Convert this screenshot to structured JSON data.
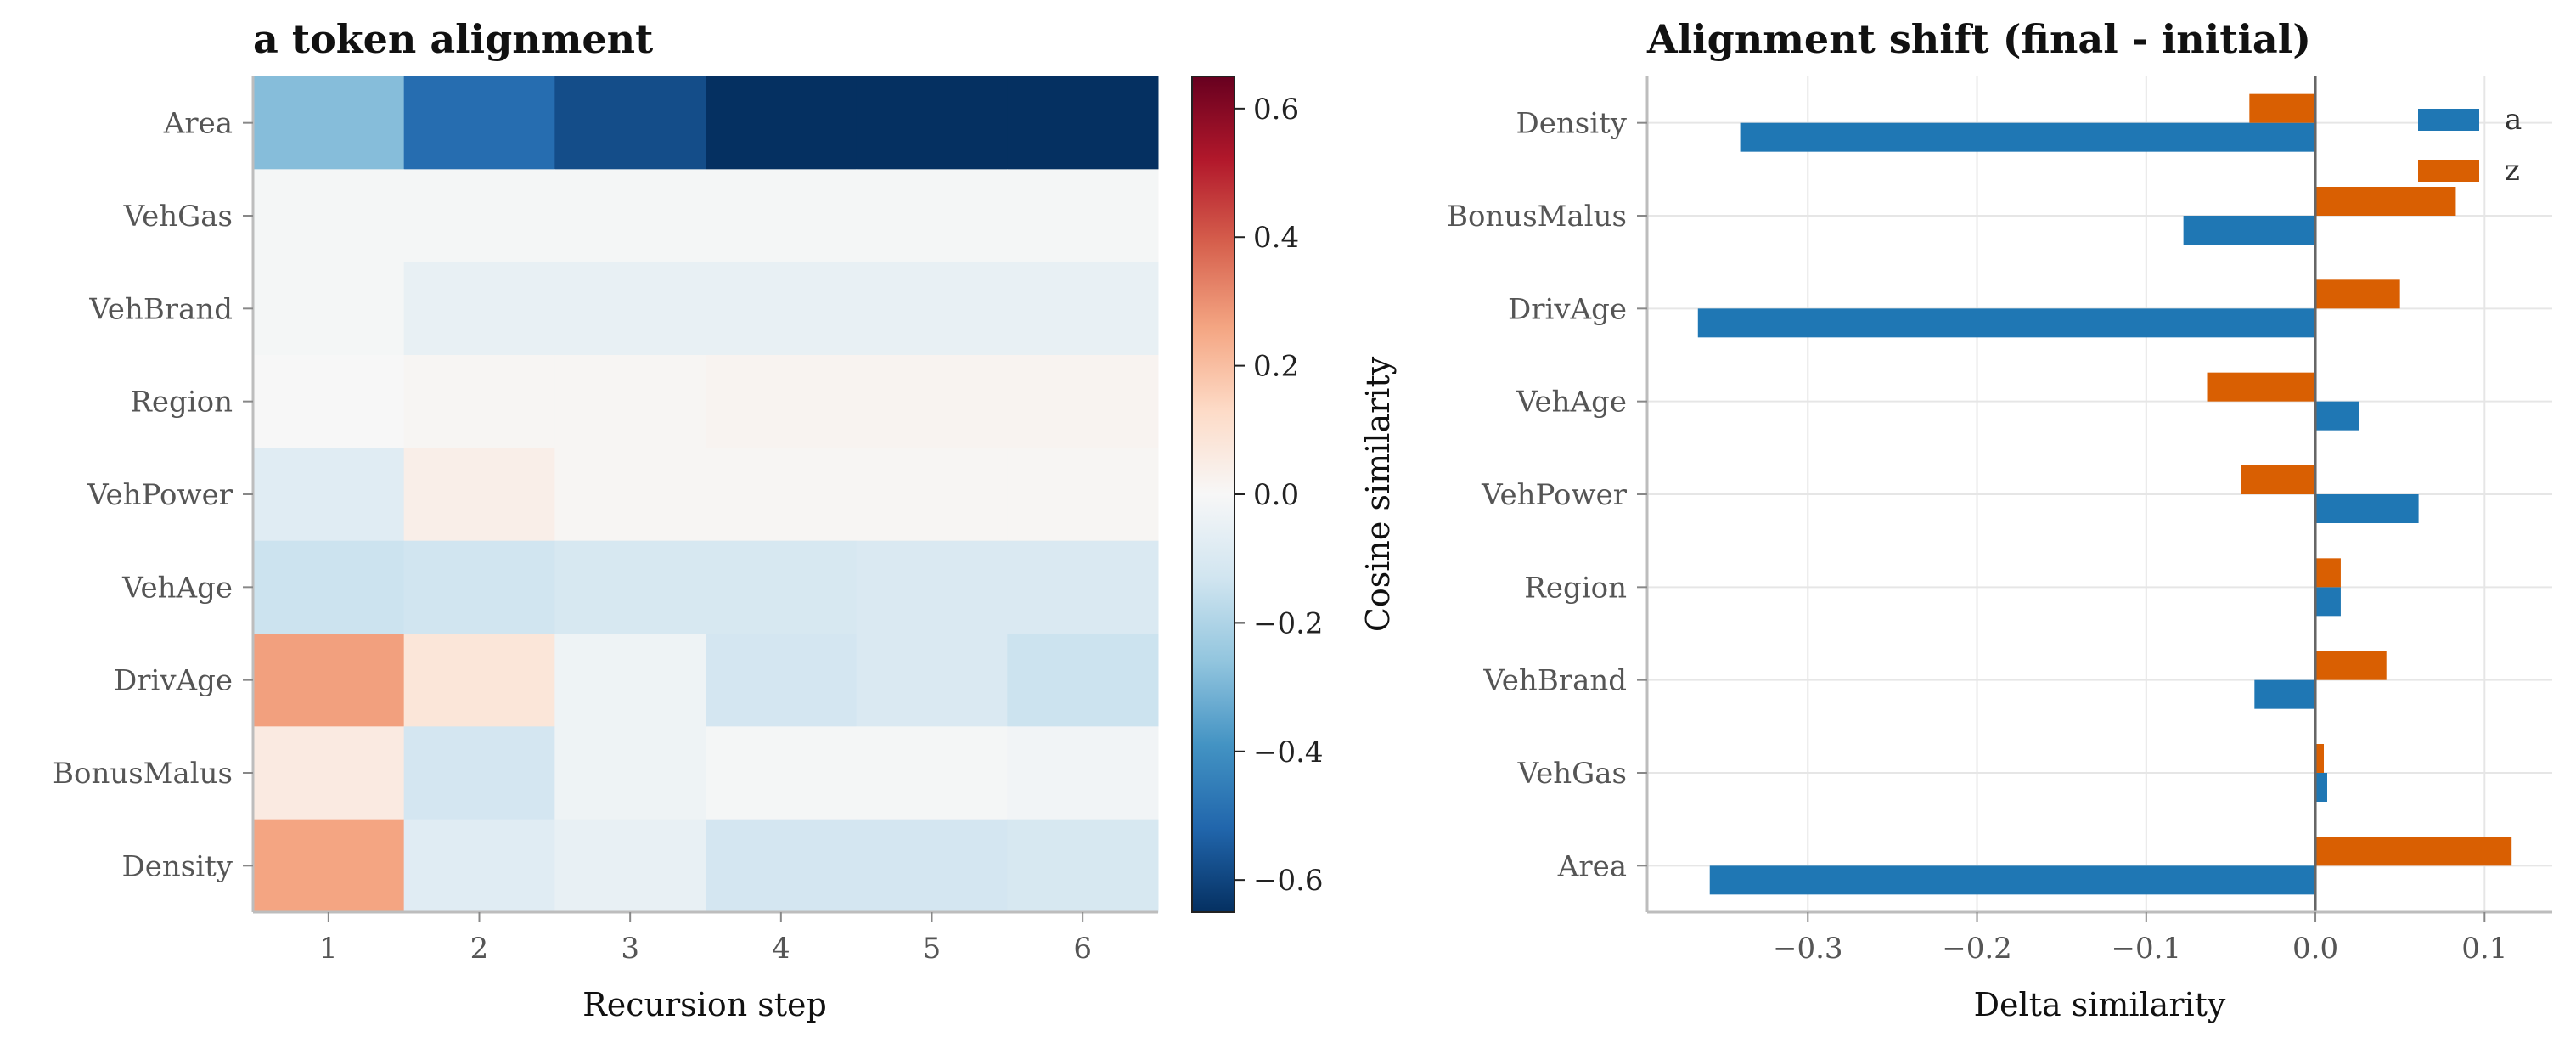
{
  "colors": {
    "a": "#1f77b4",
    "z": "#d95f02",
    "grid": "#e6e6e6",
    "zero_line": "#666666"
  },
  "chart_data": [
    {
      "type": "heatmap",
      "title": "a token alignment",
      "xlabel": "Recursion step",
      "ylabel": "",
      "x_categories": [
        "1",
        "2",
        "3",
        "4",
        "5",
        "6"
      ],
      "y_categories": [
        "Area",
        "VehGas",
        "VehBrand",
        "Region",
        "VehPower",
        "VehAge",
        "DrivAge",
        "BonusMalus",
        "Density"
      ],
      "values": [
        [
          -0.28,
          -0.5,
          -0.58,
          -0.65,
          -0.65,
          -0.65
        ],
        [
          -0.01,
          -0.01,
          -0.01,
          -0.01,
          -0.01,
          -0.01
        ],
        [
          -0.01,
          -0.05,
          -0.05,
          -0.05,
          -0.05,
          -0.05
        ],
        [
          0.0,
          0.01,
          0.01,
          0.02,
          0.02,
          0.02
        ],
        [
          -0.08,
          0.04,
          0.01,
          0.01,
          0.01,
          0.01
        ],
        [
          -0.14,
          -0.13,
          -0.11,
          -0.11,
          -0.1,
          -0.1
        ],
        [
          0.27,
          0.08,
          -0.03,
          -0.12,
          -0.1,
          -0.14
        ],
        [
          0.06,
          -0.12,
          -0.03,
          -0.01,
          -0.01,
          -0.02
        ],
        [
          0.26,
          -0.08,
          -0.05,
          -0.12,
          -0.12,
          -0.11
        ]
      ],
      "vmin": -0.65,
      "vmax": 0.65,
      "colorbar_label": "Cosine similarity",
      "colorbar_ticks": [
        -0.6,
        -0.4,
        -0.2,
        0.0,
        0.2,
        0.4,
        0.6
      ],
      "colorbar_tick_labels": [
        "−0.6",
        "−0.4",
        "−0.2",
        "0.0",
        "0.2",
        "0.4",
        "0.6"
      ],
      "colormap": "diverging blue-white-red"
    },
    {
      "type": "bar",
      "orientation": "horizontal",
      "title": "Alignment shift (final - initial)",
      "xlabel": "Delta similarity",
      "ylabel": "",
      "categories": [
        "Density",
        "BonusMalus",
        "DrivAge",
        "VehAge",
        "VehPower",
        "Region",
        "VehBrand",
        "VehGas",
        "Area"
      ],
      "series": [
        {
          "name": "a",
          "values": [
            -0.34,
            -0.078,
            -0.365,
            0.026,
            0.061,
            0.015,
            -0.036,
            0.007,
            -0.358
          ]
        },
        {
          "name": "z",
          "values": [
            -0.039,
            0.083,
            0.05,
            -0.064,
            -0.044,
            0.015,
            0.042,
            0.005,
            0.116
          ]
        }
      ],
      "xlim": [
        -0.395,
        0.14
      ],
      "x_ticks": [
        -0.3,
        -0.2,
        -0.1,
        0.0,
        0.1
      ],
      "x_tick_labels": [
        "−0.3",
        "−0.2",
        "−0.1",
        "0.0",
        "0.1"
      ],
      "grid": true,
      "legend_position": "top-right"
    }
  ]
}
